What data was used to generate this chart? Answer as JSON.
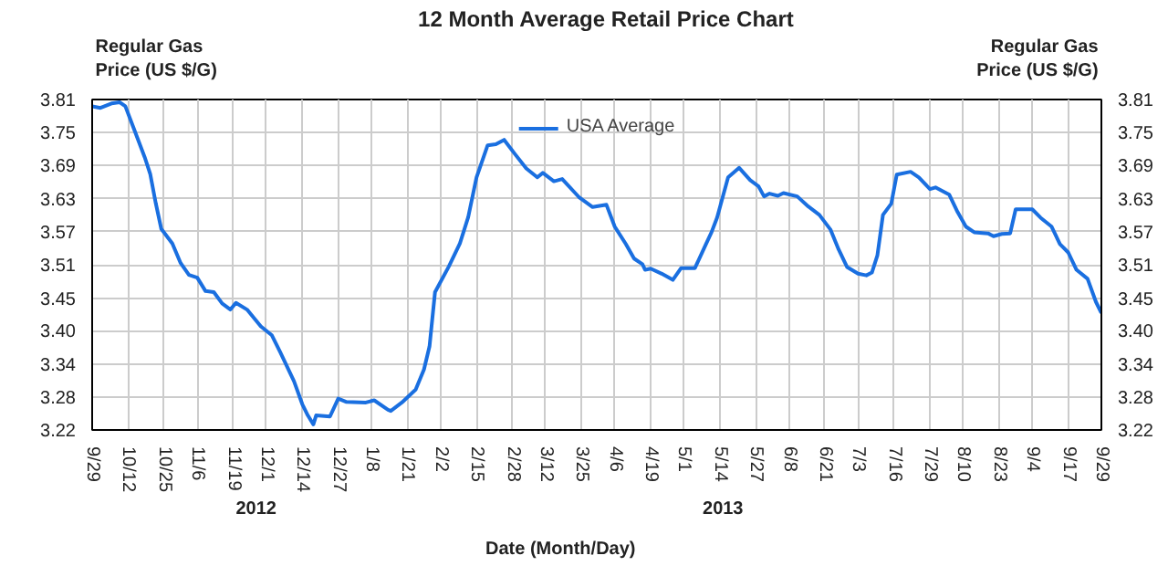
{
  "chart_data": {
    "type": "line",
    "title": "12 Month Average Retail Price Chart",
    "xlabel": "Date (Month/Day)",
    "ylabel": "Regular Gas Price (US $/G)",
    "y2label": "Regular Gas Price (US $/G)",
    "annotations": [
      "2012",
      "2013"
    ],
    "x": [
      "2012-09-29",
      "2012-10-02",
      "2012-10-06",
      "2012-10-09",
      "2012-10-11",
      "2012-10-14",
      "2012-10-18",
      "2012-10-20",
      "2012-10-22",
      "2012-10-24",
      "2012-10-28",
      "2012-10-31",
      "2012-11-03",
      "2012-11-06",
      "2012-11-09",
      "2012-11-12",
      "2012-11-15",
      "2012-11-18",
      "2012-11-20",
      "2012-11-24",
      "2012-11-29",
      "2012-12-03",
      "2012-12-06",
      "2012-12-11",
      "2012-12-14",
      "2012-12-16",
      "2012-12-18",
      "2012-12-19",
      "2012-12-24",
      "2012-12-27",
      "2012-12-30",
      "2013-01-06",
      "2013-01-09",
      "2013-01-14",
      "2013-01-15",
      "2013-01-19",
      "2013-01-24",
      "2013-01-27",
      "2013-01-29",
      "2013-01-31",
      "2013-02-05",
      "2013-02-09",
      "2013-02-12",
      "2013-02-15",
      "2013-02-19",
      "2013-02-22",
      "2013-02-25",
      "2013-03-01",
      "2013-03-05",
      "2013-03-09",
      "2013-03-11",
      "2013-03-15",
      "2013-03-18",
      "2013-03-24",
      "2013-03-29",
      "2013-04-03",
      "2013-04-06",
      "2013-04-10",
      "2013-04-13",
      "2013-04-16",
      "2013-04-17",
      "2013-04-19",
      "2013-04-23",
      "2013-04-27",
      "2013-04-30",
      "2013-05-05",
      "2013-05-09",
      "2013-05-11",
      "2013-05-13",
      "2013-05-17",
      "2013-05-21",
      "2013-05-25",
      "2013-05-28",
      "2013-05-30",
      "2013-06-01",
      "2013-06-04",
      "2013-06-06",
      "2013-06-11",
      "2013-06-15",
      "2013-06-19",
      "2013-06-23",
      "2013-06-26",
      "2013-06-29",
      "2013-07-03",
      "2013-07-06",
      "2013-07-08",
      "2013-07-10",
      "2013-07-12",
      "2013-07-15",
      "2013-07-17",
      "2013-07-22",
      "2013-07-25",
      "2013-07-29",
      "2013-07-31",
      "2013-08-05",
      "2013-08-08",
      "2013-08-11",
      "2013-08-14",
      "2013-08-19",
      "2013-08-21",
      "2013-08-24",
      "2013-08-27",
      "2013-08-29",
      "2013-09-04",
      "2013-09-07",
      "2013-09-11",
      "2013-09-14",
      "2013-09-17",
      "2013-09-20",
      "2013-09-24",
      "2013-09-27",
      "2013-09-29"
    ],
    "series": [
      {
        "name": "USA Average",
        "color": "#1a6fe0",
        "values": [
          3.798,
          3.795,
          3.803,
          3.805,
          3.798,
          3.759,
          3.707,
          3.677,
          3.625,
          3.579,
          3.553,
          3.518,
          3.497,
          3.492,
          3.468,
          3.466,
          3.446,
          3.435,
          3.447,
          3.435,
          3.405,
          3.389,
          3.359,
          3.307,
          3.266,
          3.246,
          3.23,
          3.246,
          3.244,
          3.276,
          3.27,
          3.269,
          3.273,
          3.256,
          3.254,
          3.269,
          3.292,
          3.328,
          3.369,
          3.466,
          3.512,
          3.553,
          3.6,
          3.671,
          3.728,
          3.73,
          3.738,
          3.712,
          3.687,
          3.671,
          3.679,
          3.664,
          3.668,
          3.636,
          3.618,
          3.622,
          3.583,
          3.552,
          3.526,
          3.516,
          3.506,
          3.508,
          3.499,
          3.488,
          3.509,
          3.509,
          3.552,
          3.573,
          3.599,
          3.671,
          3.688,
          3.666,
          3.655,
          3.637,
          3.642,
          3.638,
          3.643,
          3.637,
          3.619,
          3.604,
          3.578,
          3.542,
          3.511,
          3.499,
          3.496,
          3.501,
          3.532,
          3.604,
          3.624,
          3.676,
          3.681,
          3.671,
          3.65,
          3.653,
          3.64,
          3.609,
          3.583,
          3.573,
          3.571,
          3.566,
          3.57,
          3.571,
          3.614,
          3.614,
          3.599,
          3.583,
          3.552,
          3.537,
          3.506,
          3.49,
          3.449,
          3.429
        ]
      }
    ],
    "xlim": [
      "2012-09-29",
      "2013-09-29"
    ],
    "xticks": [
      {
        "value": "2012-09-29",
        "label": "9/29"
      },
      {
        "value": "2012-10-12",
        "label": "10/12"
      },
      {
        "value": "2012-10-25",
        "label": "10/25"
      },
      {
        "value": "2012-11-06",
        "label": "11/6"
      },
      {
        "value": "2012-11-19",
        "label": "11/19"
      },
      {
        "value": "2012-12-01",
        "label": "12/1"
      },
      {
        "value": "2012-12-14",
        "label": "12/14"
      },
      {
        "value": "2012-12-27",
        "label": "12/27"
      },
      {
        "value": "2013-01-08",
        "label": "1/8"
      },
      {
        "value": "2013-01-21",
        "label": "1/21"
      },
      {
        "value": "2013-02-02",
        "label": "2/2"
      },
      {
        "value": "2013-02-15",
        "label": "2/15"
      },
      {
        "value": "2013-02-28",
        "label": "2/28"
      },
      {
        "value": "2013-03-12",
        "label": "3/12"
      },
      {
        "value": "2013-03-25",
        "label": "3/25"
      },
      {
        "value": "2013-04-06",
        "label": "4/6"
      },
      {
        "value": "2013-04-19",
        "label": "4/19"
      },
      {
        "value": "2013-05-01",
        "label": "5/1"
      },
      {
        "value": "2013-05-14",
        "label": "5/14"
      },
      {
        "value": "2013-05-27",
        "label": "5/27"
      },
      {
        "value": "2013-06-08",
        "label": "6/8"
      },
      {
        "value": "2013-06-21",
        "label": "6/21"
      },
      {
        "value": "2013-07-03",
        "label": "7/3"
      },
      {
        "value": "2013-07-16",
        "label": "7/16"
      },
      {
        "value": "2013-07-29",
        "label": "7/29"
      },
      {
        "value": "2013-08-10",
        "label": "8/10"
      },
      {
        "value": "2013-08-23",
        "label": "8/23"
      },
      {
        "value": "2013-09-04",
        "label": "9/4"
      },
      {
        "value": "2013-09-17",
        "label": "9/17"
      },
      {
        "value": "2013-09-29",
        "label": "9/29"
      }
    ],
    "ylim": [
      3.22,
      3.81
    ],
    "yticks": [
      3.22,
      {
        "value": 3.279,
        "label": "3.28"
      },
      {
        "value": 3.338,
        "label": "3.34"
      },
      {
        "value": 3.397,
        "label": "3.40"
      },
      {
        "value": 3.454,
        "label": "3.45"
      },
      {
        "value": 3.515,
        "label": "3.51"
      },
      {
        "value": 3.574,
        "label": "3.57"
      },
      {
        "value": 3.633,
        "label": "3.63"
      },
      {
        "value": 3.692,
        "label": "3.69"
      },
      {
        "value": 3.751,
        "label": "3.75"
      },
      3.81
    ],
    "y2lim": [
      3.22,
      3.81
    ],
    "y2ticks": [
      3.22,
      {
        "value": 3.279,
        "label": "3.28"
      },
      {
        "value": 3.338,
        "label": "3.34"
      },
      {
        "value": 3.397,
        "label": "3.40"
      },
      {
        "value": 3.454,
        "label": "3.45"
      },
      {
        "value": 3.515,
        "label": "3.51"
      },
      {
        "value": 3.574,
        "label": "3.57"
      },
      {
        "value": 3.633,
        "label": "3.63"
      },
      {
        "value": 3.692,
        "label": "3.69"
      },
      {
        "value": 3.751,
        "label": "3.75"
      },
      3.81
    ],
    "grid": true,
    "legend": "top",
    "marker": "none",
    "line_style": "solid"
  }
}
